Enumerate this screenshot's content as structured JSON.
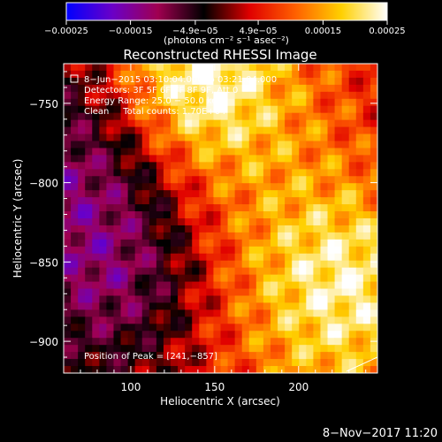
{
  "chart_data": {
    "type": "heatmap",
    "title": "Reconstructed RHESSI Image",
    "xlabel": "Heliocentric X (arcsec)",
    "ylabel": "Heliocentric Y (arcsec)",
    "xlim": [
      60,
      247
    ],
    "ylim": [
      -920,
      -725
    ],
    "x_ticks": [
      100,
      150,
      200
    ],
    "x_tick_labels": [
      "100",
      "150",
      "200"
    ],
    "y_ticks": [
      -750,
      -800,
      -850,
      -900
    ],
    "y_tick_labels": [
      "−750",
      "−800",
      "−850",
      "−900"
    ],
    "colorbar": {
      "range": [
        -0.00025,
        0.00025
      ],
      "colors": [
        "#0000ff",
        "#6a00c8",
        "#a00050",
        "#000000",
        "#e00000",
        "#ff6000",
        "#ffd000",
        "#ffffff"
      ],
      "tick_values": [
        -0.00025,
        -0.00015,
        -4.9e-05,
        4.9e-05,
        0.00015,
        0.00025
      ],
      "tick_labels": [
        "−0.00025",
        "−0.00015",
        "−4.9e−05",
        "4.9e−05",
        "0.00015",
        "0.00025"
      ],
      "units": "(photons cm⁻² s⁻¹ asec⁻²)"
    },
    "annotations": [
      "8−Jun−2015 03:10:04.000 to 03:21:04.000",
      "Detectors: 3F 5F 6F 7F 8F 9F, Att 0",
      "Energy Range: 25.0 − 50.0 keV",
      "Clean     Total counts: 1.70E+04",
      "Position of Peak = [241,−857]"
    ],
    "peak_position": [
      241,
      -857
    ],
    "footer": "8−Nov−2017 11:20"
  }
}
